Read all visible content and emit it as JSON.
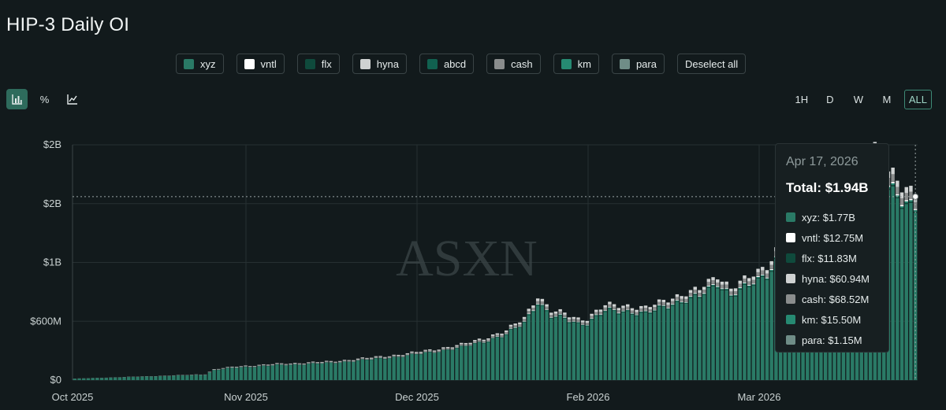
{
  "title": "HIP-3 Daily OI",
  "legend": [
    {
      "name": "xyz",
      "color": "#2a7a66"
    },
    {
      "name": "vntl",
      "color": "#ffffff"
    },
    {
      "name": "flx",
      "color": "#0f4a3c"
    },
    {
      "name": "hyna",
      "color": "#cfd2d2"
    },
    {
      "name": "abcd",
      "color": "#116150"
    },
    {
      "name": "cash",
      "color": "#8a8d8d"
    },
    {
      "name": "km",
      "color": "#268a72"
    },
    {
      "name": "para",
      "color": "#6f8d87"
    }
  ],
  "deselect_label": "Deselect all",
  "tools": {
    "bar_icon": "bar-chart-icon",
    "percent_label": "%",
    "line_icon": "line-chart-icon"
  },
  "ranges": [
    "1H",
    "D",
    "W",
    "M",
    "ALL"
  ],
  "active_range": "ALL",
  "watermark": "ASXN",
  "tooltip": {
    "date": "Apr 17, 2026",
    "total": "Total: $1.94B",
    "rows": [
      {
        "label": "xyz: $1.77B",
        "color": "#2a7a66"
      },
      {
        "label": "vntl: $12.75M",
        "color": "#ffffff"
      },
      {
        "label": "flx: $11.83M",
        "color": "#0f4a3c"
      },
      {
        "label": "hyna: $60.94M",
        "color": "#cfd2d2"
      },
      {
        "label": "cash: $68.52M",
        "color": "#8a8d8d"
      },
      {
        "label": "km: $15.50M",
        "color": "#268a72"
      },
      {
        "label": "para: $1.15M",
        "color": "#6f8d87"
      }
    ]
  },
  "chart_data": {
    "type": "bar",
    "stacked": true,
    "x_ticks": [
      "Oct 2025",
      "Nov 2025",
      "Dec 2025",
      "Feb 2026",
      "Mar 2026"
    ],
    "y_ticks": [
      "$0",
      "$600M",
      "$1B",
      "$2B",
      "$2B"
    ],
    "y_tick_values": [
      0,
      600,
      1200,
      1800,
      2400
    ],
    "ylim": [
      0,
      2400
    ],
    "unit": "USD millions",
    "grid": true,
    "key_points": [
      {
        "day": 0,
        "total": 15
      },
      {
        "day": 20,
        "total": 45
      },
      {
        "day": 29,
        "total": 60
      },
      {
        "day": 31,
        "total": 110
      },
      {
        "day": 36,
        "total": 140
      },
      {
        "day": 45,
        "total": 165
      },
      {
        "day": 57,
        "total": 190
      },
      {
        "day": 66,
        "total": 230
      },
      {
        "day": 74,
        "total": 270
      },
      {
        "day": 86,
        "total": 360
      },
      {
        "day": 96,
        "total": 500
      },
      {
        "day": 100,
        "total": 640
      },
      {
        "day": 103,
        "total": 870
      },
      {
        "day": 106,
        "total": 700
      },
      {
        "day": 109,
        "total": 680
      },
      {
        "day": 112,
        "total": 630
      },
      {
        "day": 114,
        "total": 630
      },
      {
        "day": 118,
        "total": 760
      },
      {
        "day": 122,
        "total": 770
      },
      {
        "day": 127,
        "total": 730
      },
      {
        "day": 133,
        "total": 850
      },
      {
        "day": 139,
        "total": 920
      },
      {
        "day": 143,
        "total": 1080
      },
      {
        "day": 146,
        "total": 940
      },
      {
        "day": 150,
        "total": 1040
      },
      {
        "day": 154,
        "total": 1180
      },
      {
        "day": 157,
        "total": 1400
      },
      {
        "day": 160,
        "total": 1440
      },
      {
        "day": 163,
        "total": 1250
      },
      {
        "day": 170,
        "total": 1570
      },
      {
        "day": 174,
        "total": 2260
      },
      {
        "day": 178,
        "total": 2360
      },
      {
        "day": 181,
        "total": 2100
      },
      {
        "day": 184,
        "total": 2000
      },
      {
        "day": 187,
        "total": 1940
      }
    ],
    "mix": {
      "xyz": 0.912,
      "vntl": 0.007,
      "flx": 0.006,
      "hyna": 0.031,
      "cash": 0.035,
      "km": 0.008,
      "para": 0.001
    }
  }
}
